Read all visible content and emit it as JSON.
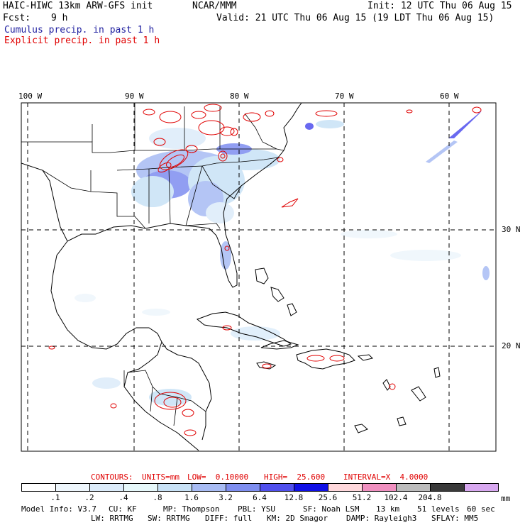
{
  "header": {
    "model": "HAIC-HIWC 13km ARW-GFS init",
    "org": "NCAR/MMM",
    "init": "Init: 12 UTC Thu 06 Aug 15",
    "fcst_label": "Fcst:",
    "fcst_value": "9 h",
    "valid": "Valid: 21 UTC Thu 06 Aug 15 (19 LDT Thu 06 Aug 15)",
    "legend_cumulus": "Cumulus precip. in past 1 h",
    "legend_explicit": "Explicit precip. in past 1 h"
  },
  "colors": {
    "cumulus_label": "#2020a0",
    "explicit_label": "#e00000",
    "contour": "#e00000",
    "gridline": "#000000"
  },
  "axes": {
    "lon_labels": [
      "100 W",
      "90 W",
      "80 W",
      "70 W",
      "60 W"
    ],
    "lat_labels": [
      "30 N",
      "20 N"
    ]
  },
  "contour_info": {
    "contours": "CONTOURS:",
    "units": "UNITS=mm",
    "low": "LOW=  0.10000",
    "high": "HIGH=  25.600",
    "interval": "INTERVAL=X  4.0000"
  },
  "colorbar": {
    "unit": "mm",
    "labels": [
      ".1",
      ".2",
      ".4",
      ".8",
      "1.6",
      "3.2",
      "6.4",
      "12.8",
      "25.6",
      "51.2",
      "102.4",
      "204.8"
    ],
    "colors": [
      "#ffffff",
      "#eef6fc",
      "#dcecfa",
      "#e6f8fa",
      "#c8e2f6",
      "#a8bcf4",
      "#7e8ef0",
      "#5050ee",
      "#1010e6",
      "#ffd8dc",
      "#f090c0",
      "#bcbcbc",
      "#3a3a3a",
      "#d8a8f0"
    ]
  },
  "footer": {
    "line1": [
      "Model Info: V3.7",
      "CU: KF",
      "MP: Thompson",
      "PBL: YSU",
      "SF: Noah LSM",
      "13 km",
      "51 levels",
      "60 sec"
    ],
    "line2": [
      "LW: RRTMG",
      "SW: RRTMG",
      "DIFF: full",
      "KM: 2D Smagor",
      "DAMP: Rayleigh3",
      "SFLAY: MM5"
    ]
  }
}
